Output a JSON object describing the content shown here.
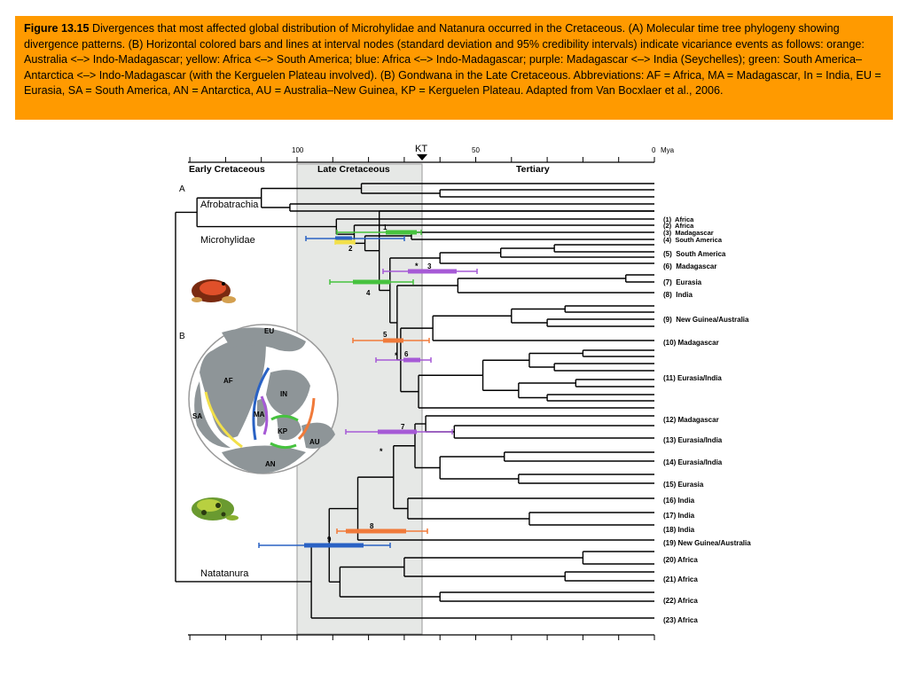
{
  "caption": {
    "figure_label": "Figure 13.15",
    "text": " Divergences that most affected global distribution of Microhylidae and Natanura occurred in the Cretaceous. (A) Molecular time tree phylogeny showing divergence patterns. (B) Horizontal colored bars and lines at interval nodes (standard deviation and 95% credibility intervals) indicate vicariance events as follows: orange: Australia <–> Indo-Madagascar; yellow: Africa <–> South America; blue: Africa <–> Indo-Madagascar; purple: Madagascar <–> India (Seychelles); green: South America–Antarctica <–> Indo-Madagascar (with the Kerguelen Plateau involved). (B) Gondwana in the Late Cretaceous. Abbreviations: AF = Africa, MA = Madagascar, In = India, EU = Eurasia, SA = South America, AN = Antarctica, AU = Australia–New Guinea, KP = Kerguelen Plateau. Adapted from Van Bocxlaer et al., 2006."
  },
  "figure": {
    "axis": {
      "tick_100": "100",
      "tick_50": "50",
      "tick_0": "0",
      "kt": "KT",
      "unit": "Mya"
    },
    "periods": {
      "early": "Early Cretaceous",
      "late": "Late Cretaceous",
      "tertiary": "Tertiary"
    },
    "panel_a": "A",
    "panel_b": "B",
    "clades": {
      "afro": "Afrobatrachia",
      "micro": "Microhylidae",
      "nata": "Natatanura"
    },
    "map_labels": {
      "eu": "EU",
      "af": "AF",
      "in": "IN",
      "sa": "SA",
      "ma": "MA",
      "kp": "KP",
      "au": "AU",
      "an": "AN"
    },
    "node_labels": [
      "1",
      "2",
      "3",
      "4",
      "5",
      "6",
      "7",
      "8",
      "9"
    ],
    "asterisk": "*",
    "tip_groups": [
      "(1)  Africa",
      "(2)  Africa",
      "(3)  Madagascar",
      "(4)  South America",
      "(5)  South America",
      "(6)  Madagascar",
      "(7)  Eurasia",
      "(8)  India",
      "(9)  New Guinea/Australia",
      "(10) Madagascar",
      "(11) Eurasia/India",
      "(12) Madagascar",
      "(13) Eurasia/India",
      "(14) Eurasia/India",
      "(15) Eurasia",
      "(16) India",
      "(17) India",
      "(18) India",
      "(19) New Guinea/Australia",
      "(20) Africa",
      "(21) Africa",
      "(22) Africa",
      "(23) Africa"
    ],
    "colors": {
      "orange": "#f07a3a",
      "yellow": "#f2e04a",
      "blue": "#2a62c4",
      "purple": "#a65ad6",
      "green": "#46c23e",
      "shade": "#e6e8e6",
      "caption_bg": "#ff9a00"
    }
  }
}
